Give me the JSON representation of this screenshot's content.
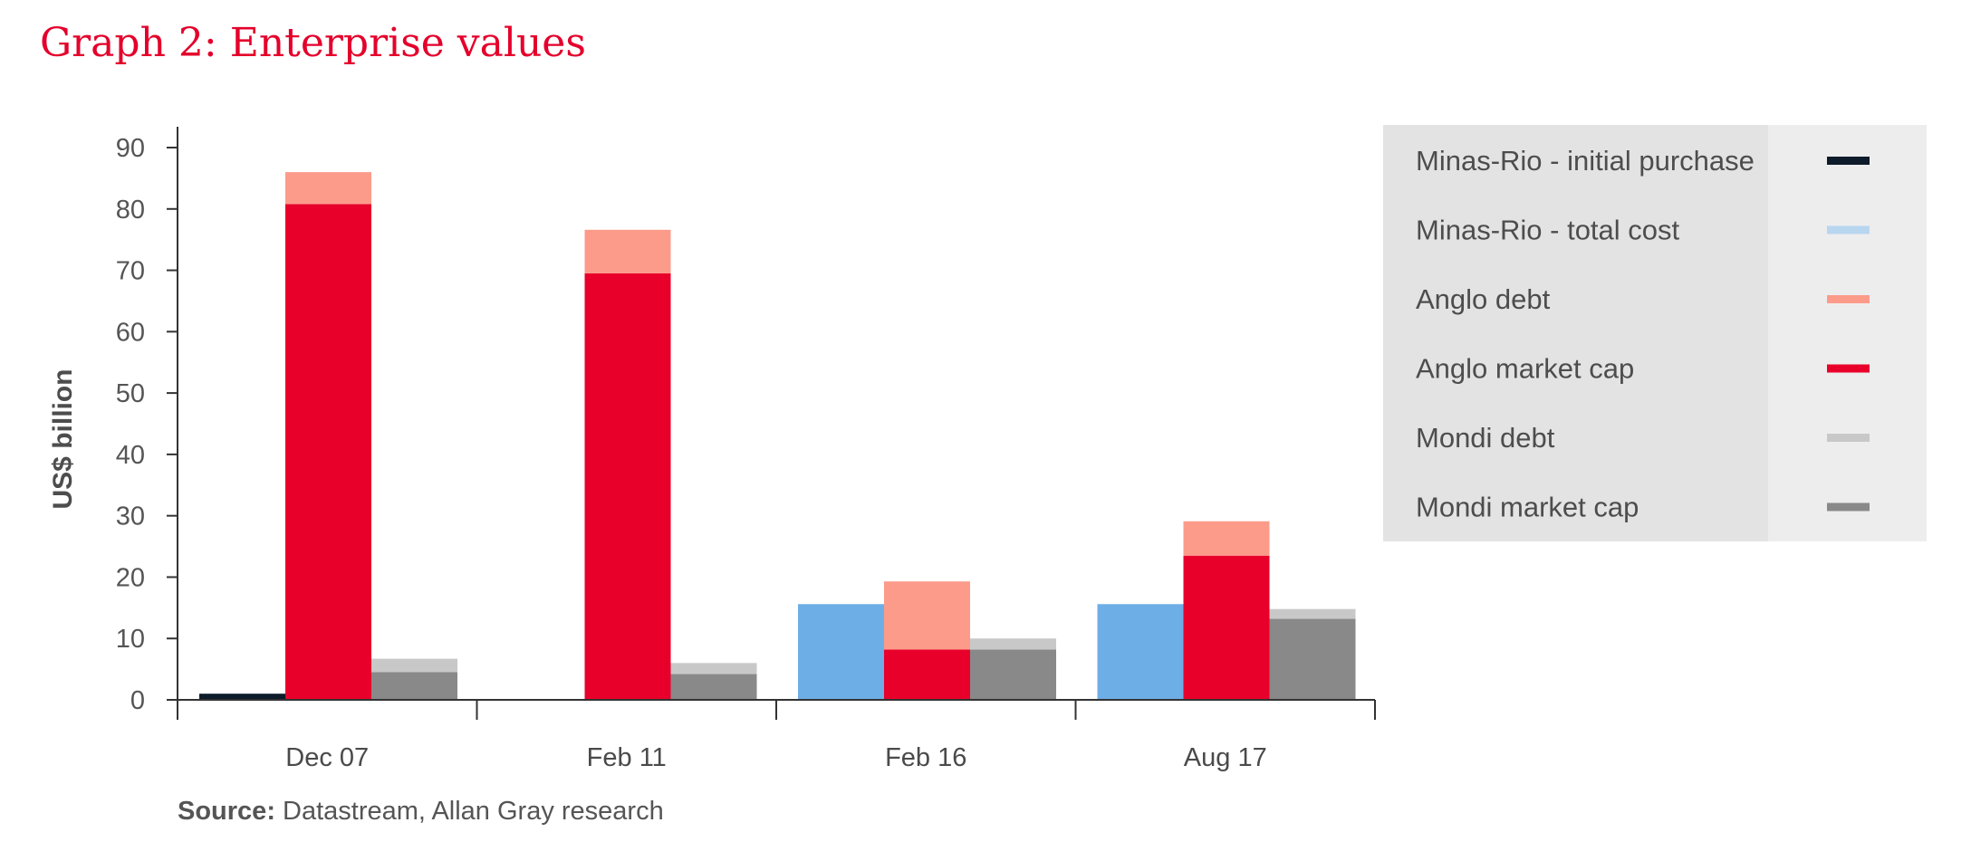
{
  "title": "Graph 2: Enterprise values",
  "source": {
    "label": "Source:",
    "text": "Datastream, Allan Gray research"
  },
  "chart_data": {
    "type": "bar",
    "stacked_groups": true,
    "categories": [
      "Dec 07",
      "Feb 11",
      "Feb 16",
      "Aug 17"
    ],
    "ylabel": "US$ billion",
    "xlabel": "",
    "ylim": [
      0,
      90
    ],
    "yticks": [
      0,
      10,
      20,
      30,
      40,
      50,
      60,
      70,
      80,
      90
    ],
    "grid": false,
    "legend_position": "right",
    "bars": [
      {
        "group": "Minas-Rio",
        "stack": [
          {
            "series": "Minas-Rio - initial purchase",
            "values": [
              1,
              0,
              0,
              0
            ]
          },
          {
            "series": "Minas-Rio - total cost",
            "values": [
              0,
              0,
              15.6,
              15.6
            ]
          }
        ]
      },
      {
        "group": "Anglo",
        "stack": [
          {
            "series": "Anglo market cap",
            "values": [
              80.8,
              69.5,
              8.2,
              23.5
            ]
          },
          {
            "series": "Anglo debt",
            "values": [
              5.2,
              7.1,
              11.1,
              5.6
            ]
          }
        ]
      },
      {
        "group": "Mondi",
        "stack": [
          {
            "series": "Mondi market cap",
            "values": [
              4.5,
              4.2,
              8.2,
              13.2
            ]
          },
          {
            "series": "Mondi debt",
            "values": [
              2.2,
              1.8,
              1.8,
              1.6
            ]
          }
        ]
      }
    ],
    "bar_colors": {
      "Minas-Rio - initial purchase": "#0d1b2a",
      "Minas-Rio - total cost": "#6eaee6",
      "Anglo debt": "#fc9b8a",
      "Anglo market cap": "#e8002b",
      "Mondi debt": "#c8c8c8",
      "Mondi market cap": "#898989"
    },
    "legend": [
      {
        "label": "Minas-Rio - initial purchase",
        "color": "#0d1b2a"
      },
      {
        "label": "Minas-Rio - total cost",
        "color": "#b8d6f0"
      },
      {
        "label": "Anglo debt",
        "color": "#fc9b8a"
      },
      {
        "label": "Anglo market cap",
        "color": "#e8002b"
      },
      {
        "label": "Mondi debt",
        "color": "#c8c8c8"
      },
      {
        "label": "Mondi market cap",
        "color": "#898989"
      }
    ]
  }
}
